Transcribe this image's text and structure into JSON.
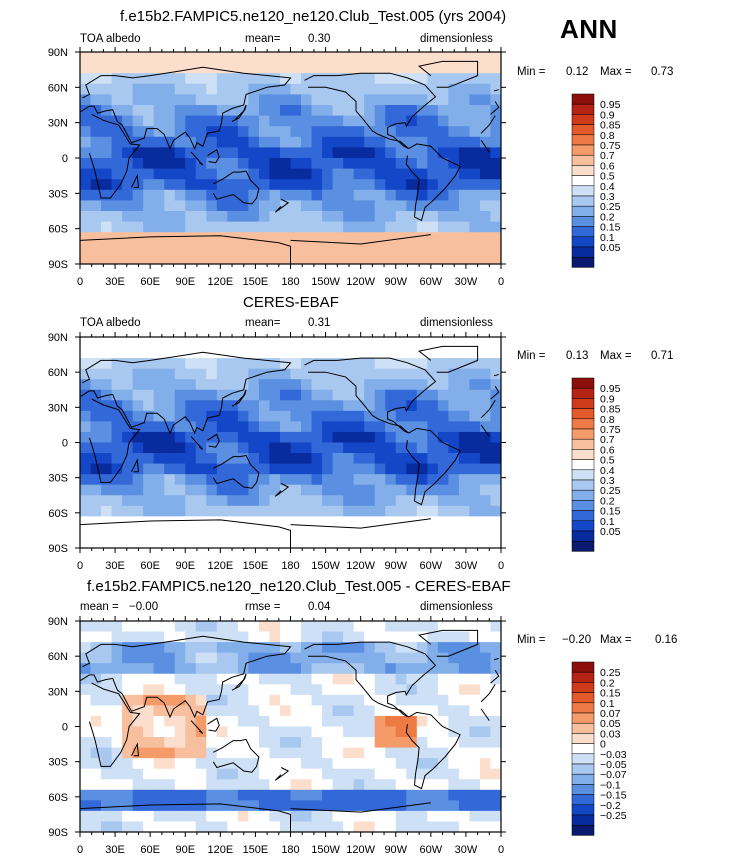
{
  "season_label": "ANN",
  "chart_data": [
    {
      "type": "heatmap",
      "title": "f.e15b2.FAMPIC5.ne120_ne120.Club_Test.005 (yrs 2004)",
      "variable": "TOA albedo",
      "mean_label": "mean=",
      "mean": "0.30",
      "units": "dimensionless",
      "min_label": "Min =",
      "min": "0.12",
      "max_label": "Max =",
      "max": "0.73",
      "x_ticks": [
        "0",
        "30E",
        "60E",
        "90E",
        "120E",
        "150E",
        "180",
        "150W",
        "120W",
        "90W",
        "60W",
        "30W",
        "0"
      ],
      "y_ticks": [
        "90N",
        "60N",
        "30N",
        "0",
        "30S",
        "60S",
        "90S"
      ],
      "colorbar_levels": [
        "0.95",
        "0.9",
        "0.85",
        "0.8",
        "0.75",
        "0.7",
        "0.6",
        "0.5",
        "0.4",
        "0.3",
        "0.25",
        "0.2",
        "0.15",
        "0.1",
        "0.05"
      ],
      "colorbar_colors": [
        "#8b0f0a",
        "#b42313",
        "#d03a1c",
        "#e25a2a",
        "#ee7a45",
        "#f59b6a",
        "#f8bf9e",
        "#fcdecd",
        "#ffffff",
        "#cde0f6",
        "#a8c8f0",
        "#82aee9",
        "#5b8fe2",
        "#3368d8",
        "#1446c8",
        "#082b9e",
        "#0a1a6e"
      ],
      "field_regime": "model_albedo"
    },
    {
      "type": "heatmap",
      "title": "CERES-EBAF",
      "variable": "TOA albedo",
      "mean_label": "mean=",
      "mean": "0.31",
      "units": "dimensionless",
      "min_label": "Min =",
      "min": "0.13",
      "max_label": "Max =",
      "max": "0.71",
      "x_ticks": [
        "0",
        "30E",
        "60E",
        "90E",
        "120E",
        "150E",
        "180",
        "150W",
        "120W",
        "90W",
        "60W",
        "30W",
        "0"
      ],
      "y_ticks": [
        "90N",
        "60N",
        "30N",
        "0",
        "30S",
        "60S",
        "90S"
      ],
      "colorbar_levels": [
        "0.95",
        "0.9",
        "0.85",
        "0.8",
        "0.75",
        "0.7",
        "0.6",
        "0.5",
        "0.4",
        "0.3",
        "0.25",
        "0.2",
        "0.15",
        "0.1",
        "0.05"
      ],
      "colorbar_colors": [
        "#8b0f0a",
        "#b42313",
        "#d03a1c",
        "#e25a2a",
        "#ee7a45",
        "#f59b6a",
        "#f8bf9e",
        "#fcdecd",
        "#ffffff",
        "#cde0f6",
        "#a8c8f0",
        "#82aee9",
        "#5b8fe2",
        "#3368d8",
        "#1446c8",
        "#082b9e",
        "#0a1a6e"
      ],
      "field_regime": "obs_albedo"
    },
    {
      "type": "heatmap",
      "title": "f.e15b2.FAMPIC5.ne120_ne120.Club_Test.005 - CERES-EBAF",
      "variable": "",
      "mean_label": "mean =",
      "mean": "−0.00",
      "rmse_label": "rmse =",
      "rmse": "0.04",
      "units": "dimensionless",
      "min_label": "Min =",
      "min": "−0.20",
      "max_label": "Max =",
      "max": "0.16",
      "x_ticks": [
        "0",
        "30E",
        "60E",
        "90E",
        "120E",
        "150E",
        "180",
        "150W",
        "120W",
        "90W",
        "60W",
        "30W",
        "0"
      ],
      "y_ticks": [
        "90N",
        "60N",
        "30N",
        "0",
        "30S",
        "60S",
        "90S"
      ],
      "colorbar_levels": [
        "0.25",
        "0.2",
        "0.15",
        "0.1",
        "0.07",
        "0.05",
        "0.03",
        "0",
        "−0.03",
        "−0.05",
        "−0.07",
        "−0.1",
        "−0.15",
        "−0.2",
        "−0.25"
      ],
      "colorbar_colors": [
        "#8b0f0a",
        "#b42313",
        "#d03a1c",
        "#e25a2a",
        "#ee7a45",
        "#f59b6a",
        "#f8bf9e",
        "#fcdecd",
        "#ffffff",
        "#cde0f6",
        "#a8c8f0",
        "#82aee9",
        "#5b8fe2",
        "#3368d8",
        "#1446c8",
        "#082b9e",
        "#0a1a6e"
      ],
      "field_regime": "difference"
    }
  ]
}
